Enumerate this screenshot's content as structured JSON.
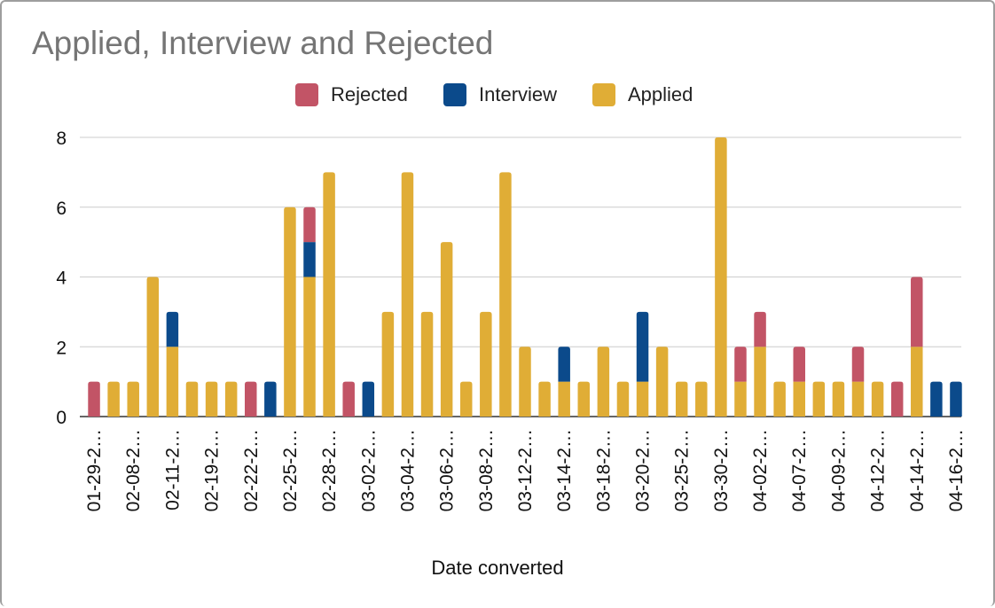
{
  "chart_data": {
    "type": "bar",
    "stacked": true,
    "title": "Applied, Interview and Rejected",
    "xlabel": "Date converted",
    "ylabel": "",
    "ylim": [
      0,
      8
    ],
    "yticks": [
      0,
      2,
      4,
      6,
      8
    ],
    "grid": true,
    "legend_position": "top",
    "categories": [
      "01-29-2",
      "",
      "02-08-2",
      "",
      "02-11-2",
      "",
      "02-19-2",
      "",
      "02-22-2",
      "",
      "02-25-2",
      "",
      "02-28-2",
      "",
      "03-02-2",
      "",
      "03-04-2",
      "",
      "03-06-2",
      "",
      "03-08-2",
      "",
      "03-12-2",
      "",
      "03-14-2",
      "",
      "03-18-2",
      "",
      "03-20-2",
      "",
      "03-25-2",
      "",
      "03-30-2",
      "",
      "04-02-2",
      "",
      "04-07-2",
      "",
      "04-09-2",
      "",
      "04-12-2",
      "",
      "04-14-2",
      "",
      "04-16-2"
    ],
    "series": [
      {
        "name": "Applied",
        "color": "#e0ad36",
        "values": [
          0,
          1,
          1,
          4,
          2,
          1,
          1,
          1,
          0,
          0,
          6,
          4,
          7,
          0,
          0,
          3,
          7,
          3,
          5,
          1,
          3,
          7,
          2,
          1,
          1,
          1,
          2,
          1,
          1,
          2,
          1,
          1,
          8,
          1,
          2,
          1,
          1,
          1,
          1,
          1,
          1,
          0,
          2,
          0,
          0
        ]
      },
      {
        "name": "Interview",
        "color": "#0b4a8b",
        "values": [
          0,
          0,
          0,
          0,
          1,
          0,
          0,
          0,
          0,
          1,
          0,
          1,
          0,
          0,
          1,
          0,
          0,
          0,
          0,
          0,
          0,
          0,
          0,
          0,
          1,
          0,
          0,
          0,
          2,
          0,
          0,
          0,
          0,
          0,
          0,
          0,
          0,
          0,
          0,
          0,
          0,
          0,
          0,
          1,
          1
        ]
      },
      {
        "name": "Rejected",
        "color": "#c25466",
        "values": [
          1,
          0,
          0,
          0,
          0,
          0,
          0,
          0,
          1,
          0,
          0,
          1,
          0,
          1,
          0,
          0,
          0,
          0,
          0,
          0,
          0,
          0,
          0,
          0,
          0,
          0,
          0,
          0,
          0,
          0,
          0,
          0,
          0,
          1,
          1,
          0,
          1,
          0,
          0,
          1,
          0,
          1,
          2,
          0,
          0
        ]
      }
    ],
    "legend": [
      {
        "name": "Rejected",
        "color": "#c25466"
      },
      {
        "name": "Interview",
        "color": "#0b4a8b"
      },
      {
        "name": "Applied",
        "color": "#e0ad36"
      }
    ]
  }
}
